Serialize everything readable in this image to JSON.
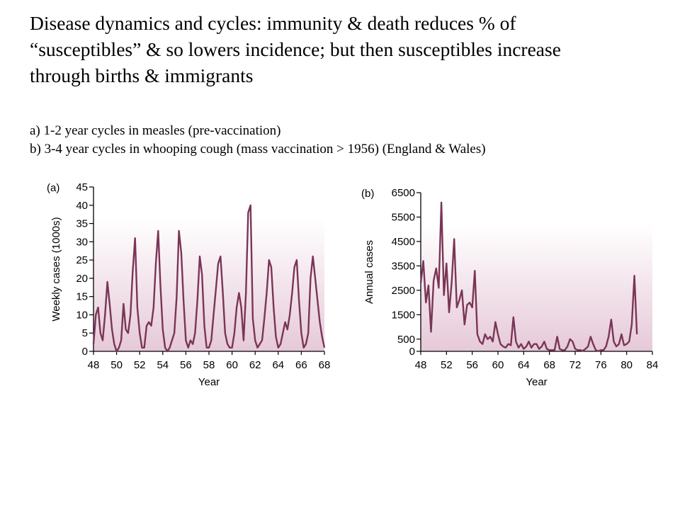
{
  "slide": {
    "title_lines": [
      "Disease dynamics and cycles:  immunity & death reduces % of",
      "“susceptibles”  & so lowers incidence; but then susceptibles increase",
      "through births & immigrants"
    ],
    "captions": [
      "a) 1-2 year cycles in measles (pre-vaccination)",
      "b) 3-4 year cycles in whooping cough (mass vaccination > 1956) (England & Wales)"
    ]
  },
  "colors": {
    "line": "#7a3556",
    "shade_top": "#ffffff",
    "shade_bottom": "#e6c9d8"
  },
  "chart_data": [
    {
      "type": "line",
      "panel_label": "(a)",
      "xlabel": "Year",
      "ylabel": "Weekly cases (1000s)",
      "xlim": [
        48,
        68
      ],
      "ylim": [
        0,
        45
      ],
      "xticks": [
        48,
        50,
        52,
        54,
        56,
        58,
        60,
        62,
        64,
        66,
        68
      ],
      "yticks": [
        0,
        5,
        10,
        15,
        20,
        25,
        30,
        35,
        40,
        45
      ],
      "series": [
        {
          "x": [
            48.0,
            48.2,
            48.4,
            48.6,
            48.8,
            49.0,
            49.2,
            49.4,
            49.6,
            49.8,
            50.0,
            50.2,
            50.4,
            50.6,
            50.8,
            51.0,
            51.2,
            51.4,
            51.6,
            51.8,
            52.0,
            52.2,
            52.4,
            52.6,
            52.8,
            53.0,
            53.2,
            53.4,
            53.6,
            53.8,
            54.0,
            54.2,
            54.4,
            54.6,
            54.8,
            55.0,
            55.2,
            55.4,
            55.6,
            55.8,
            56.0,
            56.2,
            56.4,
            56.6,
            56.8,
            57.0,
            57.2,
            57.4,
            57.6,
            57.8,
            58.0,
            58.2,
            58.4,
            58.6,
            58.8,
            59.0,
            59.2,
            59.4,
            59.6,
            59.8,
            60.0,
            60.2,
            60.4,
            60.6,
            60.8,
            61.0,
            61.2,
            61.4,
            61.6,
            61.8,
            62.0,
            62.2,
            62.4,
            62.6,
            62.8,
            63.0,
            63.2,
            63.4,
            63.6,
            63.8,
            64.0,
            64.2,
            64.4,
            64.6,
            64.8,
            65.0,
            65.2,
            65.4,
            65.6,
            65.8,
            66.0,
            66.2,
            66.4,
            66.6,
            66.8,
            67.0,
            67.2,
            67.4,
            67.6,
            67.8,
            68.0
          ],
          "values": [
            2,
            10,
            12,
            5,
            3,
            10,
            19,
            13,
            6,
            2,
            0,
            1,
            3,
            13,
            6,
            5,
            10,
            22,
            31,
            12,
            5,
            1,
            1,
            7,
            8,
            7,
            12,
            24,
            33,
            18,
            6,
            1,
            0,
            1,
            3,
            5,
            15,
            33,
            27,
            14,
            3,
            1,
            3,
            2,
            5,
            14,
            26,
            21,
            7,
            1,
            1,
            3,
            10,
            17,
            24,
            26,
            16,
            5,
            2,
            1,
            1,
            5,
            12,
            16,
            12,
            3,
            16,
            38,
            40,
            9,
            3,
            1,
            2,
            3,
            9,
            16,
            25,
            23,
            12,
            4,
            1,
            2,
            5,
            8,
            6,
            10,
            16,
            23,
            25,
            14,
            5,
            1,
            2,
            5,
            20,
            26,
            20,
            14,
            8,
            4,
            1
          ]
        }
      ]
    },
    {
      "type": "line",
      "panel_label": "(b)",
      "xlabel": "Year",
      "ylabel": "Annual cases",
      "xlim": [
        48,
        84
      ],
      "ylim": [
        0,
        6500
      ],
      "xticks": [
        48,
        52,
        56,
        60,
        64,
        68,
        72,
        76,
        80,
        84
      ],
      "yticks": [
        0,
        500,
        1500,
        2500,
        3500,
        4500,
        5500,
        6500
      ],
      "series": [
        {
          "x": [
            48.0,
            48.4,
            48.8,
            49.2,
            49.6,
            50.0,
            50.4,
            50.8,
            51.2,
            51.6,
            52.0,
            52.4,
            52.8,
            53.2,
            53.6,
            54.0,
            54.4,
            54.8,
            55.2,
            55.6,
            56.0,
            56.4,
            56.8,
            57.2,
            57.6,
            58.0,
            58.4,
            58.8,
            59.2,
            59.6,
            60.0,
            60.4,
            60.8,
            61.2,
            61.6,
            62.0,
            62.4,
            62.8,
            63.2,
            63.6,
            64.0,
            64.4,
            64.8,
            65.2,
            65.6,
            66.0,
            66.4,
            66.8,
            67.2,
            67.6,
            68.0,
            68.4,
            68.8,
            69.2,
            69.6,
            70.0,
            70.4,
            70.8,
            71.2,
            71.6,
            72.0,
            72.4,
            72.8,
            73.2,
            73.6,
            74.0,
            74.4,
            74.8,
            75.2,
            75.6,
            76.0,
            76.4,
            76.8,
            77.2,
            77.6,
            78.0,
            78.4,
            78.8,
            79.2,
            79.6,
            80.0,
            80.4,
            80.8,
            81.2,
            81.6
          ],
          "values": [
            2800,
            3700,
            2000,
            2700,
            800,
            2900,
            3400,
            2600,
            6100,
            2300,
            3600,
            1600,
            2800,
            4600,
            1800,
            2100,
            2500,
            1100,
            1900,
            2000,
            1800,
            3300,
            700,
            400,
            300,
            700,
            500,
            600,
            400,
            1200,
            700,
            300,
            200,
            150,
            300,
            250,
            1400,
            400,
            150,
            300,
            100,
            200,
            400,
            150,
            300,
            300,
            100,
            200,
            400,
            100,
            50,
            50,
            50,
            600,
            100,
            50,
            50,
            200,
            500,
            400,
            100,
            50,
            50,
            20,
            100,
            200,
            600,
            300,
            50,
            10,
            50,
            50,
            200,
            600,
            1300,
            400,
            200,
            300,
            700,
            250,
            300,
            400,
            1100,
            3100,
            700
          ]
        }
      ]
    }
  ]
}
